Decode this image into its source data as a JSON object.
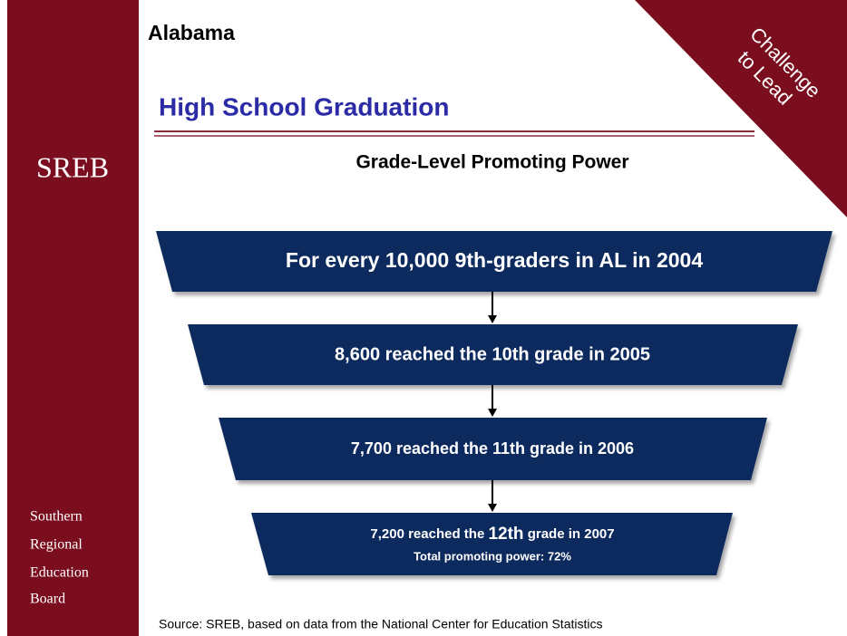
{
  "header": {
    "state": "Alabama",
    "title": "High School Graduation",
    "subtitle": "Grade-Level Promoting Power"
  },
  "badge": [
    "Challenge",
    "to Lead"
  ],
  "sidebar": {
    "logo": "SREB",
    "org": [
      "Southern",
      "Regional",
      "Education",
      "Board"
    ]
  },
  "funnel": {
    "steps": [
      {
        "text": "For every 10,000 9th-graders in AL in 2004"
      },
      {
        "text": "8,600 reached the 10th grade in 2005"
      },
      {
        "text": "7,700 reached the 11th grade in 2006"
      },
      {
        "parts": [
          "7,200 reached the ",
          "12th",
          " grade in 2007"
        ],
        "note": "Total promoting power: 72%"
      }
    ]
  },
  "source": "Source: SREB, based on data from the National Center for Education Statistics"
}
